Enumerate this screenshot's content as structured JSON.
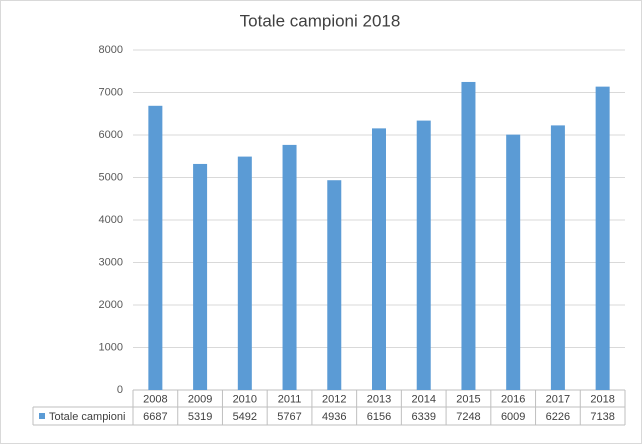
{
  "chart_data": {
    "type": "bar",
    "title": "Totale campioni 2018",
    "categories": [
      "2008",
      "2009",
      "2010",
      "2011",
      "2012",
      "2013",
      "2014",
      "2015",
      "2016",
      "2017",
      "2018"
    ],
    "series": [
      {
        "name": "Totale campioni",
        "color": "#5b9bd5",
        "values": [
          6687,
          5319,
          5492,
          5767,
          4936,
          6156,
          6339,
          7248,
          6009,
          6226,
          7138
        ]
      }
    ],
    "ylim": [
      0,
      8000
    ],
    "yticks": [
      0,
      1000,
      2000,
      3000,
      4000,
      5000,
      6000,
      7000,
      8000
    ],
    "grid": true,
    "data_table": true
  }
}
